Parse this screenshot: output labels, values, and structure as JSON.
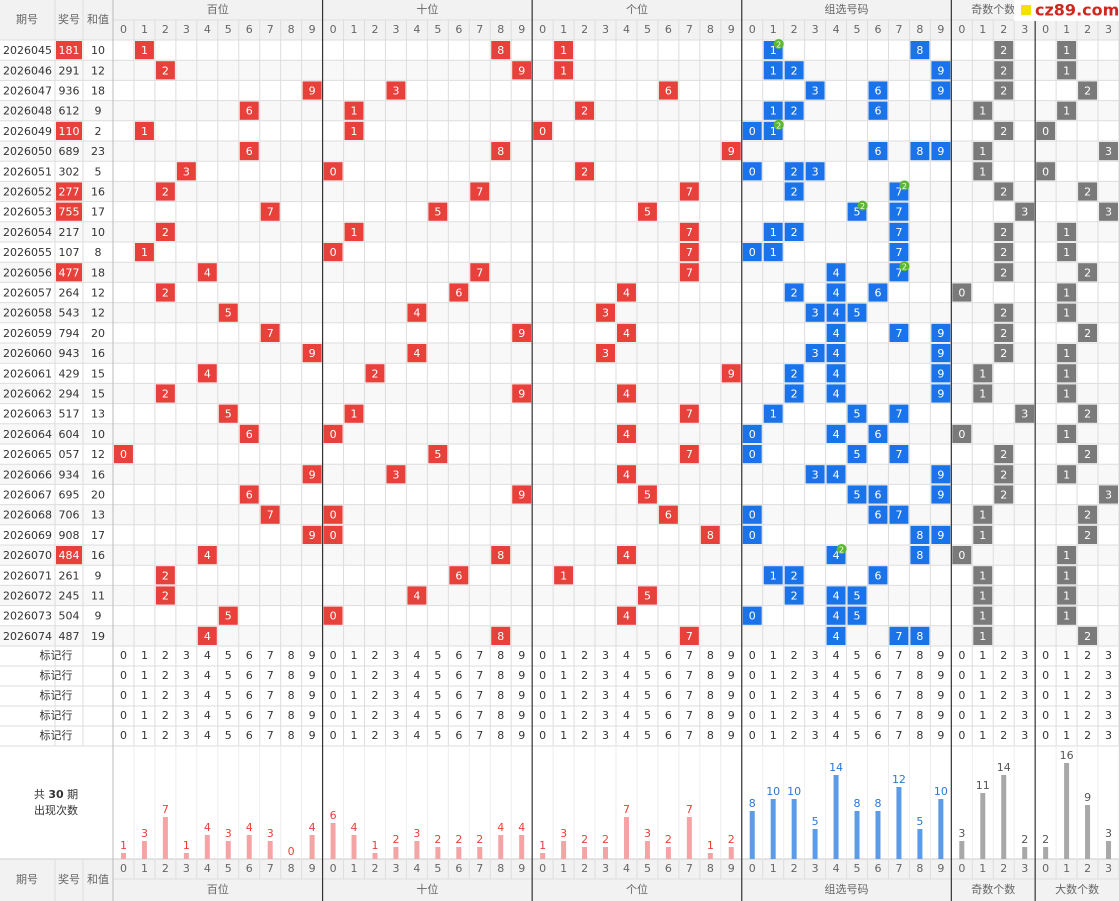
{
  "header": {
    "issue": "期号",
    "draw": "奖号",
    "sum": "和值"
  },
  "logo": "cz89.com",
  "groups": [
    {
      "name": "百位",
      "digits": [
        0,
        1,
        2,
        3,
        4,
        5,
        6,
        7,
        8,
        9
      ],
      "color": "#e8403a",
      "bar_color": "#f4a4a4"
    },
    {
      "name": "十位",
      "digits": [
        0,
        1,
        2,
        3,
        4,
        5,
        6,
        7,
        8,
        9
      ],
      "color": "#e8403a",
      "bar_color": "#f4a4a4"
    },
    {
      "name": "个位",
      "digits": [
        0,
        1,
        2,
        3,
        4,
        5,
        6,
        7,
        8,
        9
      ],
      "color": "#e8403a",
      "bar_color": "#f4a4a4"
    },
    {
      "name": "组选号码",
      "digits": [
        0,
        1,
        2,
        3,
        4,
        5,
        6,
        7,
        8,
        9
      ],
      "color": "#1a73e8",
      "bar_color": "#5b9be8"
    },
    {
      "name": "奇数个数",
      "digits": [
        0,
        1,
        2,
        3
      ],
      "color": "#7a7a7a",
      "bar_color": "#a8a8a8"
    },
    {
      "name": "大数个数",
      "digits": [
        0,
        1,
        2,
        3
      ],
      "color": "#7a7a7a",
      "bar_color": "#a8a8a8"
    }
  ],
  "rows": [
    [
      "2026045",
      "181",
      10
    ],
    [
      "2026046",
      "291",
      12
    ],
    [
      "2026047",
      "936",
      18
    ],
    [
      "2026048",
      "612",
      9
    ],
    [
      "2026049",
      "110",
      2
    ],
    [
      "2026050",
      "689",
      23
    ],
    [
      "2026051",
      "302",
      5
    ],
    [
      "2026052",
      "277",
      16
    ],
    [
      "2026053",
      "755",
      17
    ],
    [
      "2026054",
      "217",
      10
    ],
    [
      "2026055",
      "107",
      8
    ],
    [
      "2026056",
      "477",
      18
    ],
    [
      "2026057",
      "264",
      12
    ],
    [
      "2026058",
      "543",
      12
    ],
    [
      "2026059",
      "794",
      20
    ],
    [
      "2026060",
      "943",
      16
    ],
    [
      "2026061",
      "429",
      15
    ],
    [
      "2026062",
      "294",
      15
    ],
    [
      "2026063",
      "517",
      13
    ],
    [
      "2026064",
      "604",
      10
    ],
    [
      "2026065",
      "057",
      12
    ],
    [
      "2026066",
      "934",
      16
    ],
    [
      "2026067",
      "695",
      20
    ],
    [
      "2026068",
      "706",
      13
    ],
    [
      "2026069",
      "908",
      17
    ],
    [
      "2026070",
      "484",
      16
    ],
    [
      "2026071",
      "261",
      9
    ],
    [
      "2026072",
      "245",
      11
    ],
    [
      "2026073",
      "504",
      9
    ],
    [
      "2026074",
      "487",
      19
    ]
  ],
  "marker_rows": [
    "标记行",
    "标记行",
    "标记行",
    "标记行",
    "标记行"
  ],
  "stats": {
    "prefix": "共",
    "periods": 30,
    "suffix": "期",
    "caption": "出现次数",
    "counts": [
      [
        1,
        3,
        7,
        1,
        4,
        3,
        4,
        3,
        0,
        4
      ],
      [
        6,
        4,
        1,
        2,
        3,
        2,
        2,
        2,
        4,
        4
      ],
      [
        1,
        3,
        2,
        2,
        7,
        3,
        2,
        7,
        1,
        2
      ],
      [
        8,
        10,
        10,
        5,
        14,
        8,
        8,
        12,
        5,
        10
      ],
      [
        3,
        11,
        14,
        2
      ],
      [
        2,
        16,
        9,
        3
      ]
    ]
  },
  "pair_mark": 2
}
